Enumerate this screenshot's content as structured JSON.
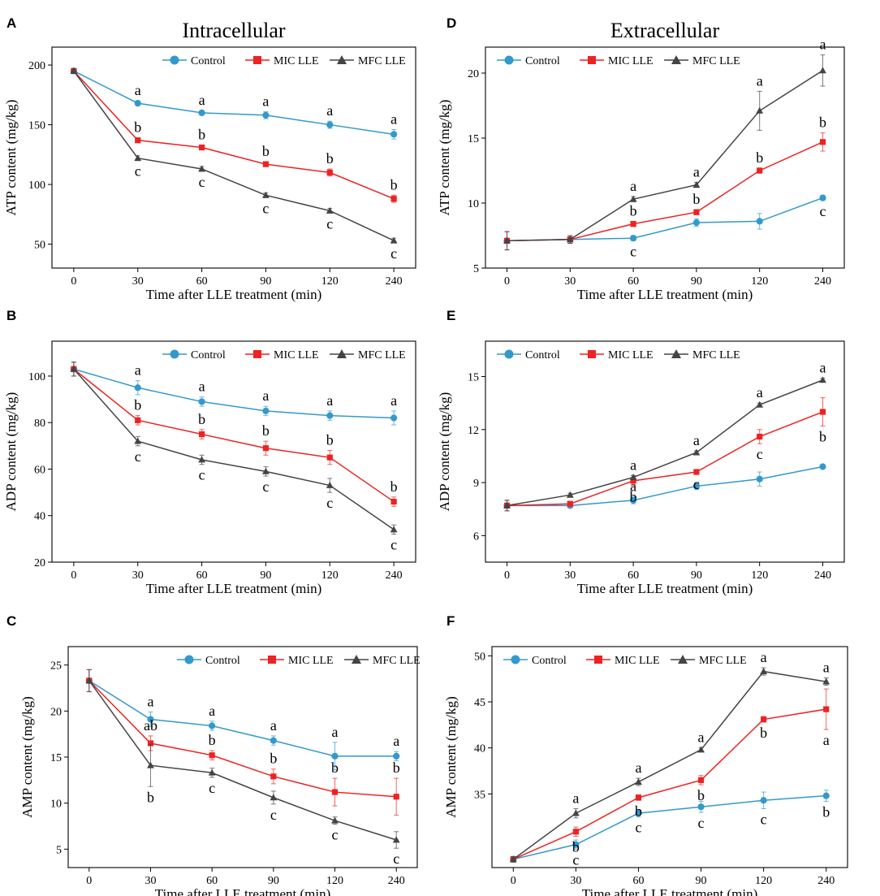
{
  "legend_labels": [
    "Control",
    "MIC LLE",
    "MFC LLE"
  ],
  "colors": {
    "control": "#3399cc",
    "mic": "#ee2222",
    "mfc": "#444444",
    "axis": "#000000"
  },
  "chart_data": [
    {
      "panel": "A",
      "type": "line",
      "title": "Intracellular",
      "xlabel": "Time after LLE treatment (min)",
      "ylabel": "ATP content (mg/kg)",
      "categories": [
        "0",
        "30",
        "60",
        "90",
        "120",
        "240"
      ],
      "ylim": [
        30,
        215
      ],
      "yticks": [
        50,
        100,
        150,
        200
      ],
      "legend_position": "top-right",
      "series": [
        {
          "name": "Control",
          "marker": "circle",
          "values": [
            195,
            168,
            160,
            158,
            150,
            142
          ],
          "errors": [
            2,
            2,
            2,
            3,
            3,
            4
          ],
          "letters": [
            "",
            "a",
            "a",
            "a",
            "a",
            "a"
          ],
          "letter_pos": [
            "",
            "above",
            "above",
            "above",
            "above",
            "above"
          ]
        },
        {
          "name": "MIC LLE",
          "marker": "square",
          "values": [
            195,
            137,
            131,
            117,
            110,
            88
          ],
          "errors": [
            2,
            2,
            2,
            2,
            3,
            3
          ],
          "letters": [
            "",
            "b",
            "b",
            "b",
            "b",
            "b"
          ],
          "letter_pos": [
            "",
            "above",
            "above",
            "above",
            "above",
            "above"
          ]
        },
        {
          "name": "MFC LLE",
          "marker": "triangle",
          "values": [
            195,
            122,
            113,
            91,
            78,
            53
          ],
          "errors": [
            2,
            2,
            2,
            2,
            2,
            2
          ],
          "letters": [
            "",
            "c",
            "c",
            "c",
            "c",
            "c"
          ],
          "letter_pos": [
            "",
            "below",
            "below",
            "below",
            "below",
            "below"
          ]
        }
      ]
    },
    {
      "panel": "B",
      "type": "line",
      "title": "",
      "xlabel": "Time after LLE treatment (min)",
      "ylabel": "ADP content (mg/kg)",
      "categories": [
        "0",
        "30",
        "60",
        "90",
        "120",
        "240"
      ],
      "ylim": [
        20,
        115
      ],
      "yticks": [
        20,
        40,
        60,
        80,
        100
      ],
      "legend_position": "top-right",
      "series": [
        {
          "name": "Control",
          "marker": "circle",
          "values": [
            103,
            95,
            89,
            85,
            83,
            82
          ],
          "errors": [
            3,
            3,
            2,
            2,
            2,
            3
          ],
          "letters": [
            "",
            "a",
            "a",
            "a",
            "a",
            "a"
          ],
          "letter_pos": [
            "",
            "above",
            "above",
            "above",
            "above",
            "above"
          ]
        },
        {
          "name": "MIC LLE",
          "marker": "square",
          "values": [
            103,
            81,
            75,
            69,
            65,
            46
          ],
          "errors": [
            3,
            2,
            2,
            3,
            3,
            2
          ],
          "letters": [
            "",
            "b",
            "b",
            "b",
            "b",
            "b"
          ],
          "letter_pos": [
            "",
            "above",
            "above",
            "above",
            "above",
            "above"
          ]
        },
        {
          "name": "MFC LLE",
          "marker": "triangle",
          "values": [
            103,
            72,
            64,
            59,
            53,
            34
          ],
          "errors": [
            3,
            2,
            2,
            2,
            3,
            2
          ],
          "letters": [
            "",
            "c",
            "c",
            "c",
            "c",
            "c"
          ],
          "letter_pos": [
            "",
            "below",
            "below",
            "below",
            "below",
            "below"
          ]
        }
      ]
    },
    {
      "panel": "C",
      "type": "line",
      "title": "",
      "xlabel": "Time after LLE treatment (min)",
      "ylabel": "AMP content (mg/kg)",
      "categories": [
        "0",
        "30",
        "60",
        "90",
        "120",
        "240"
      ],
      "ylim": [
        3,
        27
      ],
      "yticks": [
        5,
        10,
        15,
        20,
        25
      ],
      "legend_position": "top-right",
      "series": [
        {
          "name": "Control",
          "marker": "circle",
          "values": [
            23.3,
            19.1,
            18.4,
            16.8,
            15.1,
            15.1
          ],
          "errors": [
            1.2,
            0.8,
            0.5,
            0.5,
            1.5,
            0.5
          ],
          "letters": [
            "",
            "a",
            "a",
            "a",
            "a",
            "a"
          ],
          "letter_pos": [
            "",
            "above",
            "above",
            "above",
            "above",
            "above"
          ]
        },
        {
          "name": "MIC LLE",
          "marker": "square",
          "values": [
            23.3,
            16.5,
            15.2,
            12.9,
            11.2,
            10.7
          ],
          "errors": [
            1.2,
            0.8,
            0.5,
            0.8,
            1.5,
            2.0
          ],
          "letters": [
            "",
            "ab",
            "b",
            "b",
            "b",
            "b"
          ],
          "letter_pos": [
            "",
            "above",
            "above",
            "above",
            "above",
            "above"
          ]
        },
        {
          "name": "MFC LLE",
          "marker": "triangle",
          "values": [
            23.3,
            14.1,
            13.3,
            10.6,
            8.1,
            6.0
          ],
          "errors": [
            1.2,
            2.3,
            0.5,
            0.7,
            0.4,
            0.9
          ],
          "letters": [
            "",
            "b",
            "c",
            "c",
            "c",
            "c"
          ],
          "letter_pos": [
            "",
            "below",
            "below",
            "below",
            "below",
            "below"
          ]
        }
      ]
    },
    {
      "panel": "D",
      "type": "line",
      "title": "Extracellular",
      "xlabel": "Time after LLE treatment (min)",
      "ylabel": "ATP content (mg/kg)",
      "categories": [
        "0",
        "30",
        "60",
        "90",
        "120",
        "240"
      ],
      "ylim": [
        5,
        22
      ],
      "yticks": [
        5,
        10,
        15,
        20
      ],
      "legend_position": "top-right",
      "series": [
        {
          "name": "Control",
          "marker": "circle",
          "values": [
            7.1,
            7.2,
            7.3,
            8.5,
            8.6,
            10.4
          ],
          "errors": [
            0.7,
            0.3,
            0.2,
            0.3,
            0.6,
            0.2
          ],
          "letters": [
            "",
            "",
            "c",
            "",
            "",
            "c"
          ],
          "letter_pos": [
            "",
            "",
            "below",
            "",
            "",
            "below"
          ]
        },
        {
          "name": "MIC LLE",
          "marker": "square",
          "values": [
            7.1,
            7.2,
            8.4,
            9.3,
            12.5,
            14.7
          ],
          "errors": [
            0.7,
            0.3,
            0.2,
            0.2,
            0.2,
            0.7
          ],
          "letters": [
            "",
            "",
            "b",
            "b",
            "b",
            "b"
          ],
          "letter_pos": [
            "",
            "",
            "above",
            "above",
            "above",
            "above"
          ]
        },
        {
          "name": "MFC LLE",
          "marker": "triangle",
          "values": [
            7.1,
            7.2,
            10.3,
            11.4,
            17.1,
            20.2
          ],
          "errors": [
            0.7,
            0.3,
            0.2,
            0.2,
            1.5,
            1.2
          ],
          "letters": [
            "",
            "",
            "a",
            "a",
            "a",
            "a"
          ],
          "letter_pos": [
            "",
            "",
            "above",
            "above",
            "above",
            "above"
          ]
        }
      ]
    },
    {
      "panel": "E",
      "type": "line",
      "title": "",
      "xlabel": "Time after LLE treatment (min)",
      "ylabel": "ADP content (mg/kg)",
      "categories": [
        "0",
        "30",
        "60",
        "90",
        "120",
        "240"
      ],
      "ylim": [
        4.5,
        17
      ],
      "yticks": [
        6,
        9,
        12,
        15
      ],
      "legend_position": "top-right",
      "series": [
        {
          "name": "Control",
          "marker": "circle",
          "values": [
            7.7,
            7.7,
            8.0,
            8.8,
            9.2,
            9.9
          ],
          "errors": [
            0.3,
            0.1,
            0.2,
            0.2,
            0.4,
            0.1
          ],
          "letters": [
            "",
            "",
            "a",
            "",
            "",
            ""
          ],
          "letter_pos": [
            "",
            "",
            "above",
            "",
            "",
            ""
          ]
        },
        {
          "name": "MIC LLE",
          "marker": "square",
          "values": [
            7.7,
            7.8,
            9.1,
            9.6,
            11.6,
            13.0
          ],
          "errors": [
            0.3,
            0.1,
            0.3,
            0.1,
            0.4,
            0.8
          ],
          "letters": [
            "",
            "",
            "b",
            "c",
            "c",
            "b"
          ],
          "letter_pos": [
            "",
            "",
            "below",
            "below",
            "below",
            "below"
          ]
        },
        {
          "name": "MFC LLE",
          "marker": "triangle",
          "values": [
            7.7,
            8.3,
            9.3,
            10.7,
            13.4,
            14.8
          ],
          "errors": [
            0.3,
            0.1,
            0.1,
            0.1,
            0.1,
            0.1
          ],
          "letters": [
            "",
            "",
            "a",
            "a",
            "a",
            "a"
          ],
          "letter_pos": [
            "",
            "",
            "above",
            "above",
            "above",
            "above"
          ]
        }
      ]
    },
    {
      "panel": "F",
      "type": "line",
      "title": "",
      "xlabel": "Time after LLE treatment (min)",
      "ylabel": "AMP content (mg/kg)",
      "categories": [
        "0",
        "30",
        "60",
        "90",
        "120",
        "240"
      ],
      "ylim": [
        27,
        51
      ],
      "yticks": [
        35,
        40,
        45,
        50
      ],
      "legend_position": "top-right",
      "series": [
        {
          "name": "Control",
          "marker": "circle",
          "values": [
            27.9,
            29.5,
            32.9,
            33.6,
            34.3,
            34.8
          ],
          "errors": [
            0.3,
            0.5,
            0.4,
            0.6,
            0.9,
            0.6
          ],
          "letters": [
            "",
            "c",
            "c",
            "c",
            "c",
            "b"
          ],
          "letter_pos": [
            "",
            "below",
            "below",
            "below",
            "below",
            "below"
          ]
        },
        {
          "name": "MIC LLE",
          "marker": "square",
          "values": [
            27.9,
            30.9,
            34.6,
            36.5,
            43.1,
            44.2
          ],
          "errors": [
            0.3,
            0.5,
            0.3,
            0.5,
            0.3,
            2.2
          ],
          "letters": [
            "",
            "b",
            "b",
            "b",
            "b",
            "a"
          ],
          "letter_pos": [
            "",
            "below",
            "below",
            "below",
            "below",
            "below"
          ]
        },
        {
          "name": "MFC LLE",
          "marker": "triangle",
          "values": [
            27.9,
            32.9,
            36.3,
            39.8,
            48.3,
            47.2
          ],
          "errors": [
            0.3,
            0.5,
            0.4,
            0.2,
            0.4,
            0.4
          ],
          "letters": [
            "",
            "a",
            "a",
            "a",
            "a",
            "a"
          ],
          "letter_pos": [
            "",
            "above",
            "above",
            "above",
            "above",
            "above"
          ]
        }
      ]
    }
  ]
}
